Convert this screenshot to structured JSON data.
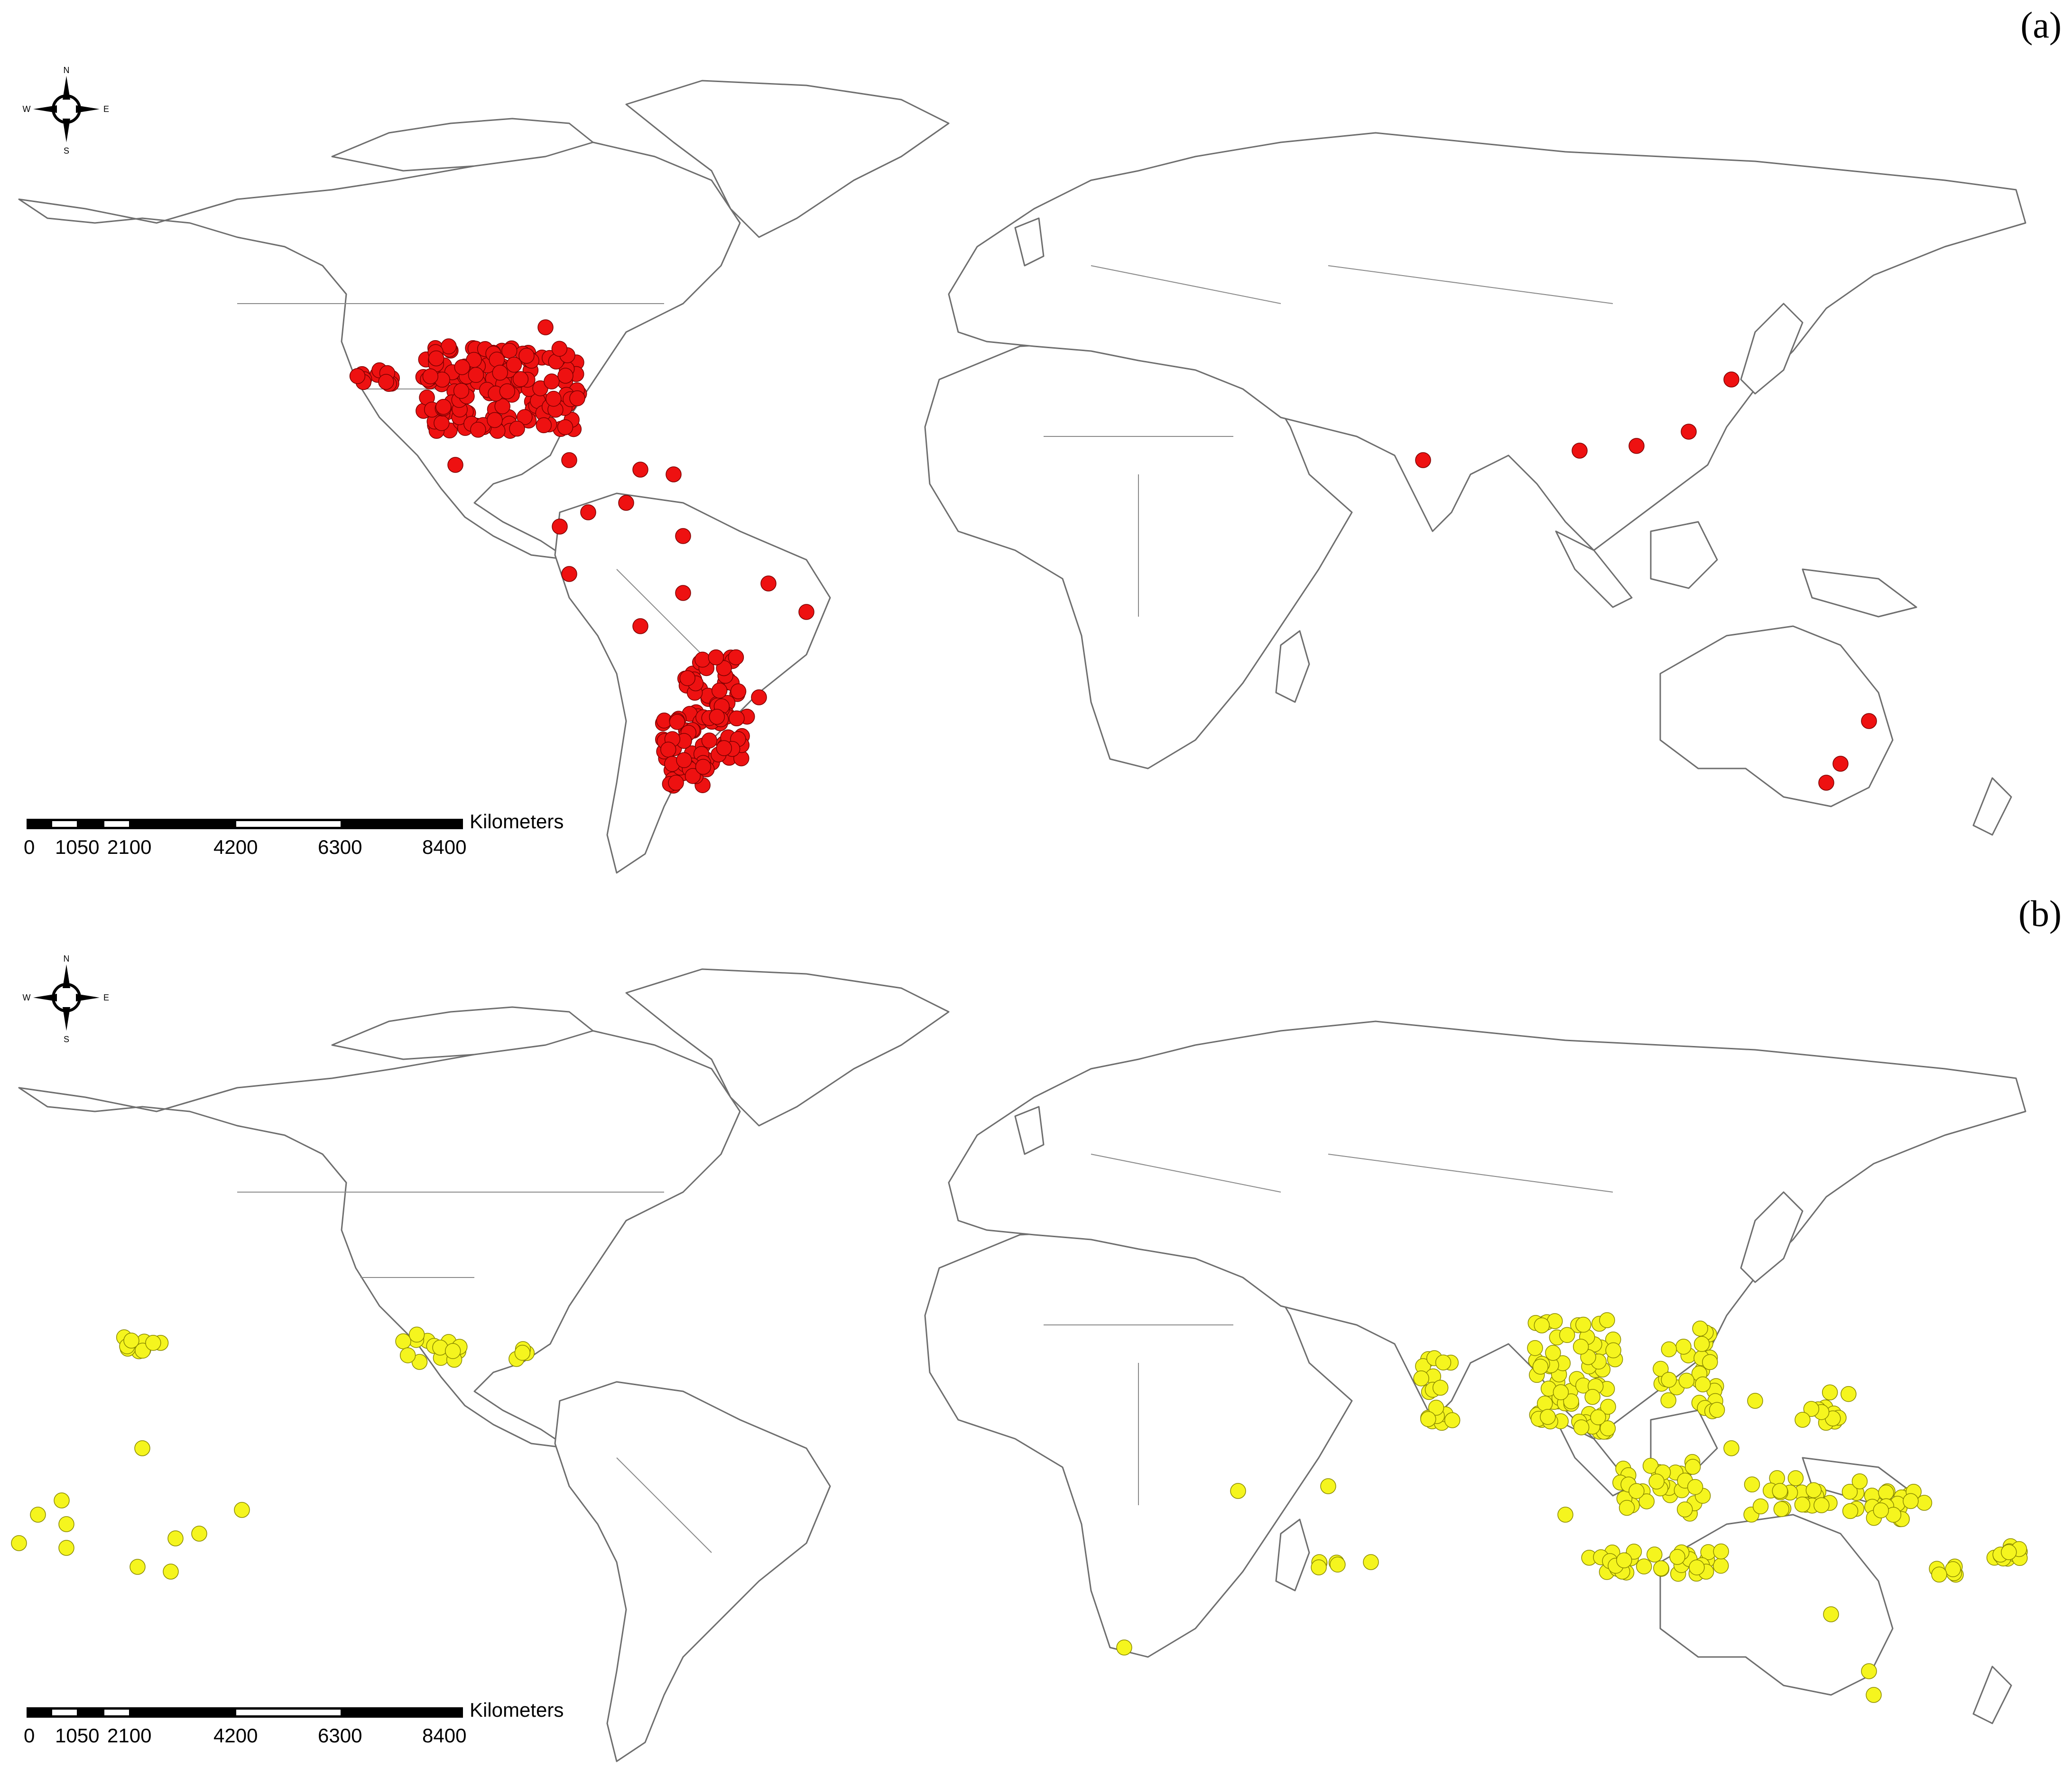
{
  "panels": [
    {
      "label": "(a)",
      "point_color": "#ee1111",
      "point_class": "pt-red"
    },
    {
      "label": "(b)",
      "point_color": "#f5f51e",
      "point_class": "pt-yellow"
    }
  ],
  "compass": {
    "n": "N",
    "s": "S",
    "e": "E",
    "w": "W"
  },
  "scalebar": {
    "unit": "Kilometers",
    "ticks": [
      "0",
      "1050",
      "2100",
      "4200",
      "6300",
      "8400"
    ]
  },
  "map": {
    "land_fill": "#ffffff",
    "border_color": "#6e6e6e",
    "background": "#ffffff"
  }
}
